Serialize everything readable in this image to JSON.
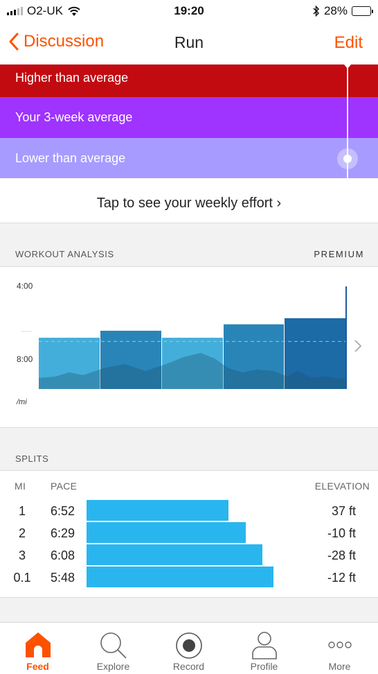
{
  "status": {
    "carrier": "O2-UK",
    "time": "19:20",
    "battery": "28%",
    "battery_level": 0.28
  },
  "nav": {
    "back_label": "Discussion",
    "title": "Run",
    "edit_label": "Edit"
  },
  "effort": {
    "higher": "Higher than average",
    "average": "Your 3-week average",
    "lower": "Lower than average",
    "weekly_link": "Tap to see your weekly effort ›"
  },
  "analysis": {
    "title": "WORKOUT ANALYSIS",
    "badge": "PREMIUM"
  },
  "chart_data": {
    "type": "bar",
    "y_ticks": [
      "4:00",
      "8:00"
    ],
    "y_unit": "/mi",
    "y_inverted": true,
    "ylim": [
      "3:00",
      "9:40"
    ],
    "average_pace": "7:04",
    "splits": [
      "1",
      "2",
      "3",
      "0.1"
    ],
    "bars": [
      {
        "label": "1",
        "pace": "6:52"
      },
      {
        "label": "2",
        "pace": "6:29"
      },
      {
        "label": "3",
        "pace": "6:08"
      },
      {
        "label": "0.1",
        "pace": "5:48"
      }
    ],
    "colors": {
      "bar": "#44aedb",
      "dark": "#2985b8",
      "last": "#1c6aa6",
      "elevation": "rgba(30,80,110,0.35)",
      "marker": "#1b5c9e"
    }
  },
  "splits": {
    "title": "SPLITS",
    "headers": {
      "mi": "MI",
      "pace": "PACE",
      "elevation": "ELEVATION"
    },
    "rows": [
      {
        "mi": "1",
        "pace": "6:52",
        "elevation": "37 ft",
        "fraction": 0.76
      },
      {
        "mi": "2",
        "pace": "6:29",
        "elevation": "-10 ft",
        "fraction": 0.85
      },
      {
        "mi": "3",
        "pace": "6:08",
        "elevation": "-28 ft",
        "fraction": 0.94
      },
      {
        "mi": "0.1",
        "pace": "5:48",
        "elevation": "-12 ft",
        "fraction": 1.0
      }
    ]
  },
  "tabs": [
    {
      "label": "Feed",
      "icon": "home-icon",
      "active": true
    },
    {
      "label": "Explore",
      "icon": "search-icon",
      "active": false
    },
    {
      "label": "Record",
      "icon": "record-icon",
      "active": false
    },
    {
      "label": "Profile",
      "icon": "profile-icon",
      "active": false
    },
    {
      "label": "More",
      "icon": "more-icon",
      "active": false
    }
  ],
  "accent": "#fc5200"
}
